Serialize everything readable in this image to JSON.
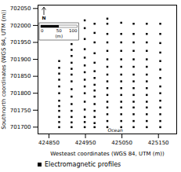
{
  "chart_data": {
    "type": "scatter",
    "xlabel": "Westeast coordinates (WGS 84, UTM (m))",
    "ylabel": "Southnorth coordinates (WGS 84, UTM (m))",
    "xlim": [
      424820,
      425200
    ],
    "ylim": [
      701680,
      702060
    ],
    "xticks": [
      424850,
      424950,
      425050,
      425150
    ],
    "yticks": [
      701700,
      701750,
      701800,
      701850,
      701900,
      701950,
      702000,
      702050
    ],
    "grid": false,
    "legend": "bottom",
    "series": [
      {
        "name": "Electromagnetic profiles",
        "color": "#000000",
        "marker": "square",
        "x": [
          424878,
          424912,
          424948,
          424975,
          425010,
          425048,
          425082,
          425118,
          425155
        ],
        "values": [
          [
            701700,
            701715,
            701730,
            701748,
            701762,
            701778,
            701800,
            701820,
            701840,
            701858,
            701875,
            701895
          ],
          [
            701700,
            701714,
            701730,
            701748,
            701768,
            701790,
            701812,
            701835,
            701855,
            701872,
            701890,
            701910,
            701928,
            701945
          ],
          [
            701700,
            701715,
            701730,
            701752,
            701775,
            701800,
            701820,
            701840,
            701862,
            701882,
            701905,
            701930,
            701960,
            701992,
            702015
          ],
          [
            701700,
            701712,
            701730,
            701748,
            701768,
            701790,
            701808,
            701825,
            701845,
            701865,
            701890,
            701918,
            701950,
            701978,
            702005
          ],
          [
            701700,
            701718,
            701738,
            701758,
            701775,
            701795,
            701815,
            701835,
            701855,
            701878,
            701900,
            701925,
            701950,
            701975,
            702005,
            702020
          ],
          [
            701700,
            701718,
            701738,
            701758,
            701775,
            701795,
            701815,
            701835,
            701855,
            701878,
            701900,
            701925,
            701950,
            701975,
            702008
          ],
          [
            701700,
            701718,
            701738,
            701758,
            701775,
            701795,
            701815,
            701835,
            701855,
            701878,
            701900,
            701925,
            701950,
            701975,
            702005
          ],
          [
            701700,
            701718,
            701738,
            701758,
            701775,
            701795,
            701815,
            701835,
            701855,
            701878,
            701900,
            701925,
            701950,
            701975,
            702005
          ],
          [
            701700,
            701718,
            701738,
            701758,
            701778,
            701800,
            701820,
            701845,
            701870,
            701895,
            701920,
            701948,
            701975,
            702005
          ]
        ]
      }
    ],
    "ocean_label": "Ocean",
    "north_label": "N",
    "scale_bar": {
      "ticks": [
        0,
        50,
        100
      ],
      "label": "(m)"
    }
  }
}
